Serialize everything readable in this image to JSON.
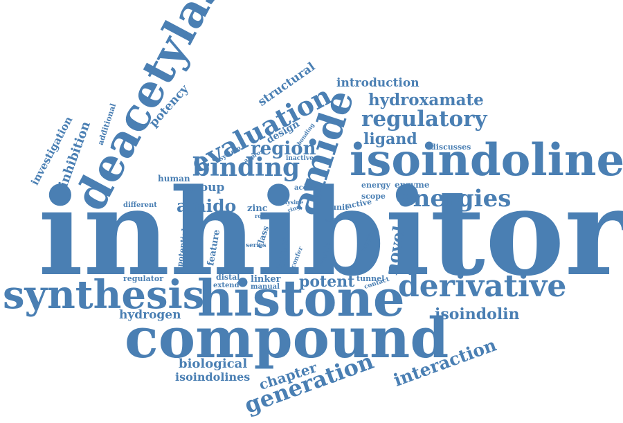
{
  "color": "#4a7fb3",
  "words": [
    "inhibitor",
    "histone",
    "compound",
    "deacetylase",
    "isoindoline",
    "synthesis",
    "derivative",
    "amide",
    "binding",
    "evaluation",
    "energies",
    "regulatory",
    "hydroxamate",
    "generation",
    "interaction",
    "novel",
    "region",
    "ligand",
    "potent",
    "amido",
    "isoindolin",
    "biological",
    "isoindolines",
    "chapter",
    "hydrogen",
    "introduction",
    "structural",
    "potency",
    "inhibition",
    "investigation",
    "additional",
    "group",
    "design",
    "human",
    "zinc",
    "hdacs",
    "class",
    "feature",
    "potential",
    "different",
    "regulator",
    "distal",
    "extend",
    "linker",
    "manual",
    "tunnel",
    "contact",
    "result",
    "confer",
    "capping",
    "series",
    "role",
    "state",
    "unit",
    "active",
    "scope",
    "energy",
    "enzyme",
    "acetate",
    "lysine",
    "ring",
    "inactive",
    "system",
    "approx",
    "bonding",
    "discusses"
  ]
}
